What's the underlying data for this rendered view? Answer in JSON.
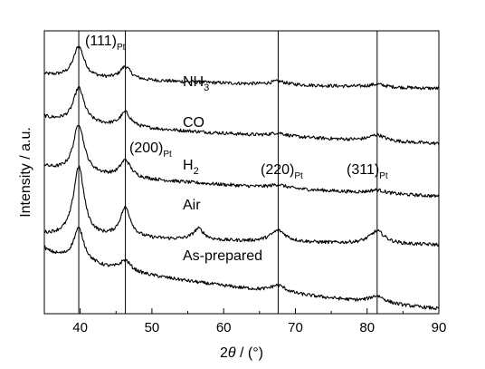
{
  "chart_data": {
    "type": "line",
    "xlabel": {
      "pre": "2",
      "italic": "θ",
      "post": " / (°)"
    },
    "ylabel": "Intensity / a.u.",
    "xlim": [
      35,
      90
    ],
    "ylim": [
      0,
      1
    ],
    "x_ticks": [
      "40",
      "50",
      "60",
      "70",
      "80",
      "90"
    ],
    "y_tick_labels": false,
    "grid": false,
    "reference_lines": [
      {
        "x": 39.8,
        "label": "(111)",
        "sub": "Pt"
      },
      {
        "x": 46.3,
        "label": "(200)",
        "sub": "Pt"
      },
      {
        "x": 67.6,
        "label": "(220)",
        "sub": "Pt"
      },
      {
        "x": 81.4,
        "label": "(311)",
        "sub": "Pt"
      }
    ],
    "series": [
      {
        "name": "NH3",
        "label_main": "NH",
        "label_sub": "3",
        "offset": 0.807,
        "base_start": 0.04,
        "base_end": -0.011,
        "peaks": [
          [
            39.8,
            0.11
          ],
          [
            46.3,
            0.045
          ],
          [
            67.6,
            0.012
          ],
          [
            81.4,
            0.01
          ]
        ]
      },
      {
        "name": "CO",
        "label_main": "CO",
        "label_sub": "",
        "offset": 0.616,
        "base_start": 0.082,
        "base_end": -0.015,
        "peaks": [
          [
            39.8,
            0.123
          ],
          [
            46.3,
            0.05
          ],
          [
            67.6,
            0.012
          ],
          [
            81.4,
            0.022
          ]
        ]
      },
      {
        "name": "H2",
        "label_main": "H",
        "label_sub": "2",
        "offset": 0.444,
        "base_start": 0.079,
        "base_end": -0.029,
        "peaks": [
          [
            39.8,
            0.172
          ],
          [
            46.3,
            0.06
          ],
          [
            67.6,
            0.012
          ],
          [
            81.4,
            0.012
          ]
        ]
      },
      {
        "name": "Air",
        "label_main": "Air",
        "label_sub": "",
        "offset": 0.233,
        "base_start": 0.048,
        "base_end": 0.01,
        "peaks": [
          [
            39.8,
            0.247
          ],
          [
            46.3,
            0.105
          ],
          [
            56.5,
            0.04
          ],
          [
            67.6,
            0.04
          ],
          [
            81.4,
            0.045
          ]
        ]
      },
      {
        "name": "As-prepared",
        "label_main": "As-prepared",
        "label_sub": "",
        "offset": 0.017,
        "base_start": 0.217,
        "base_end": 0.0,
        "peaks": [
          [
            39.8,
            0.118
          ],
          [
            46.3,
            0.038
          ],
          [
            67.6,
            0.025
          ],
          [
            81.4,
            0.025
          ]
        ]
      }
    ]
  }
}
